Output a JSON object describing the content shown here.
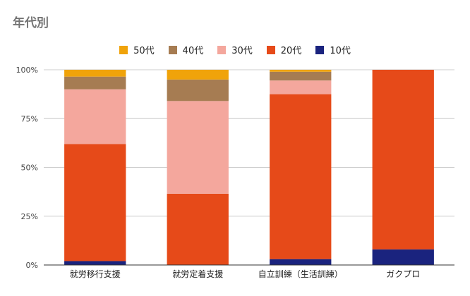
{
  "chart_data": {
    "type": "bar",
    "stacked": true,
    "title": "年代別",
    "legend_position": "top",
    "grid": true,
    "categories": [
      "就労移行支援",
      "就労定着支援",
      "自立訓練（生活訓練）",
      "ガクプロ"
    ],
    "yticks": [
      "0%",
      "25%",
      "50%",
      "75%",
      "100%"
    ],
    "ylim": [
      0,
      100
    ],
    "series": [
      {
        "name": "10代",
        "color": "#1a237e",
        "values": [
          2,
          0,
          3,
          8
        ]
      },
      {
        "name": "20代",
        "color": "#e64a19",
        "values": [
          60,
          36.5,
          84.5,
          92
        ]
      },
      {
        "name": "30代",
        "color": "#f4a79d",
        "values": [
          28,
          47.5,
          7,
          0
        ]
      },
      {
        "name": "40代",
        "color": "#a67c52",
        "values": [
          6.5,
          11,
          4.5,
          0
        ]
      },
      {
        "name": "50代",
        "color": "#f0a30a",
        "values": [
          3.5,
          5,
          1,
          0
        ]
      }
    ],
    "legend_order": [
      4,
      3,
      2,
      1,
      0
    ]
  }
}
